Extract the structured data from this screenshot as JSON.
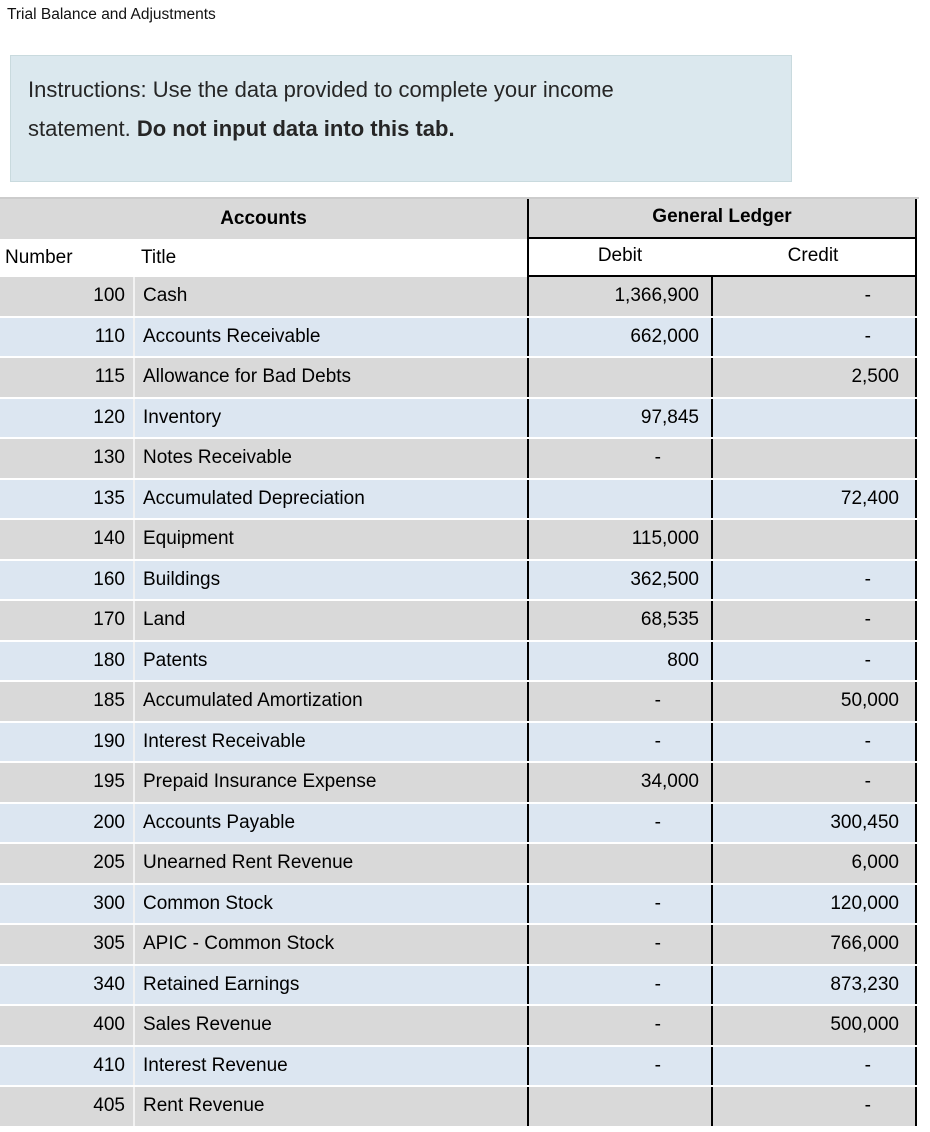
{
  "page_title": "Trial Balance and Adjustments",
  "instructions": {
    "line1": "Instructions:  Use the data provided to complete your income",
    "line2_normal": "statement. ",
    "line2_bold": "Do not input data into this tab."
  },
  "table": {
    "group_headers": {
      "accounts": "Accounts",
      "general_ledger": "General Ledger"
    },
    "column_headers": {
      "number": "Number",
      "title": "Title",
      "debit": "Debit",
      "credit": "Credit"
    },
    "rows": [
      {
        "number": "100",
        "title": "Cash",
        "debit": "1,366,900",
        "credit": "-"
      },
      {
        "number": "110",
        "title": "Accounts Receivable",
        "debit": "662,000",
        "credit": "-"
      },
      {
        "number": "115",
        "title": "Allowance for Bad Debts",
        "debit": "",
        "credit": "2,500"
      },
      {
        "number": "120",
        "title": "Inventory",
        "debit": "97,845",
        "credit": ""
      },
      {
        "number": "130",
        "title": "Notes Receivable",
        "debit": "-",
        "credit": ""
      },
      {
        "number": "135",
        "title": "Accumulated Depreciation",
        "debit": "",
        "credit": "72,400"
      },
      {
        "number": "140",
        "title": "Equipment",
        "debit": "115,000",
        "credit": ""
      },
      {
        "number": "160",
        "title": "Buildings",
        "debit": "362,500",
        "credit": "-"
      },
      {
        "number": "170",
        "title": "Land",
        "debit": "68,535",
        "credit": "-"
      },
      {
        "number": "180",
        "title": "Patents",
        "debit": "800",
        "credit": "-"
      },
      {
        "number": "185",
        "title": "Accumulated Amortization",
        "debit": "-",
        "credit": "50,000"
      },
      {
        "number": "190",
        "title": "Interest Receivable",
        "debit": "-",
        "credit": "-"
      },
      {
        "number": "195",
        "title": "Prepaid Insurance Expense",
        "debit": "34,000",
        "credit": "-"
      },
      {
        "number": "200",
        "title": "Accounts Payable",
        "debit": "-",
        "credit": "300,450"
      },
      {
        "number": "205",
        "title": "Unearned Rent Revenue",
        "debit": "",
        "credit": "6,000"
      },
      {
        "number": "300",
        "title": "Common Stock",
        "debit": "-",
        "credit": "120,000"
      },
      {
        "number": "305",
        "title": "APIC - Common Stock",
        "debit": "-",
        "credit": "766,000"
      },
      {
        "number": "340",
        "title": "Retained Earnings",
        "debit": "-",
        "credit": "873,230"
      },
      {
        "number": "400",
        "title": "Sales Revenue",
        "debit": "-",
        "credit": "500,000"
      },
      {
        "number": "410",
        "title": "Interest Revenue",
        "debit": "-",
        "credit": "-"
      },
      {
        "number": "405",
        "title": "Rent Revenue",
        "debit": "",
        "credit": "-"
      }
    ]
  },
  "colors": {
    "row_gray": "#d9d9d9",
    "row_blue": "#dce6f1",
    "instructions_bg": "#dbe8ee",
    "grid_black": "#000000"
  }
}
